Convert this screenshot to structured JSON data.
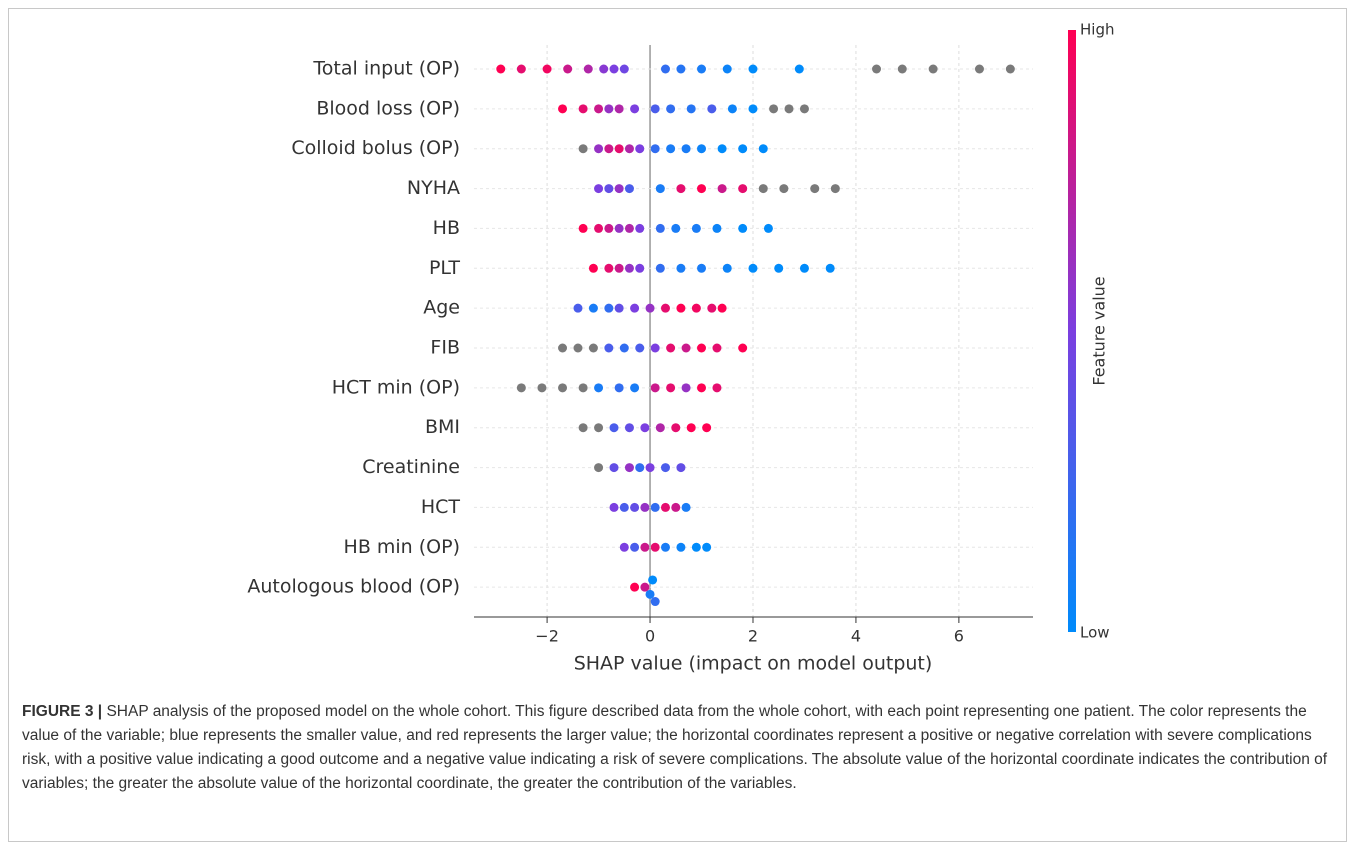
{
  "chart_data": {
    "type": "beeswarm",
    "xlabel": "SHAP value (impact on model output)",
    "xlim": [
      -3.42,
      7.44
    ],
    "xticks": [
      {
        "value": -2,
        "label": "−2"
      },
      0,
      2,
      4,
      6
    ],
    "grid": true,
    "colorbar": {
      "label": "Feature value",
      "high_label": "High",
      "low_label": "Low",
      "low_color": "#008bfb",
      "high_color": "#ff0052",
      "missing_color": "#7a7a7a"
    },
    "features": [
      {
        "name": "Total input (OP)",
        "shap": [
          -2.9,
          -2.5,
          -2.0,
          -1.6,
          -1.2,
          -0.9,
          -0.7,
          -0.5,
          0.3,
          0.6,
          1.0,
          1.5,
          2.0,
          2.9,
          4.4,
          4.9,
          5.5,
          6.4,
          7.0
        ],
        "feature_value": [
          1,
          0.9,
          0.95,
          0.8,
          0.7,
          0.55,
          0.5,
          0.45,
          0.2,
          0.15,
          0.1,
          0.05,
          0,
          0,
          null,
          null,
          null,
          null,
          null
        ]
      },
      {
        "name": "Blood loss (OP)",
        "shap": [
          -1.7,
          -1.3,
          -1.0,
          -0.8,
          -0.6,
          -0.3,
          0.1,
          0.4,
          0.8,
          1.2,
          1.6,
          2.0,
          2.4,
          2.7,
          3.0
        ],
        "feature_value": [
          1,
          0.9,
          0.8,
          0.6,
          0.7,
          0.5,
          0.3,
          0.2,
          0.15,
          0.3,
          0.05,
          0,
          null,
          null,
          null
        ]
      },
      {
        "name": "Colloid bolus (OP)",
        "shap": [
          -1.3,
          -1.0,
          -0.8,
          -0.6,
          -0.4,
          -0.2,
          0.1,
          0.4,
          0.7,
          1.0,
          1.4,
          1.8,
          2.2
        ],
        "feature_value": [
          null,
          0.6,
          0.8,
          0.9,
          0.7,
          0.5,
          0.2,
          0.1,
          0.1,
          0.05,
          0,
          0,
          0
        ]
      },
      {
        "name": "NYHA",
        "shap": [
          -1.0,
          -0.8,
          -0.6,
          -0.4,
          0.2,
          0.6,
          1.0,
          1.4,
          1.8,
          2.2,
          2.6,
          3.2,
          3.6
        ],
        "feature_value": [
          0.5,
          0.4,
          0.6,
          0.3,
          0.1,
          0.9,
          1,
          0.8,
          0.9,
          null,
          null,
          null,
          null
        ]
      },
      {
        "name": "HB",
        "shap": [
          -1.3,
          -1.0,
          -0.8,
          -0.6,
          -0.4,
          -0.2,
          0.2,
          0.5,
          0.9,
          1.3,
          1.8,
          2.3
        ],
        "feature_value": [
          1,
          0.9,
          0.8,
          0.6,
          0.7,
          0.5,
          0.2,
          0.1,
          0.1,
          0.05,
          0,
          0
        ]
      },
      {
        "name": "PLT",
        "shap": [
          -1.1,
          -0.8,
          -0.6,
          -0.4,
          -0.2,
          0.2,
          0.6,
          1.0,
          1.5,
          2.0,
          2.5,
          3.0,
          3.5
        ],
        "feature_value": [
          1,
          0.9,
          0.8,
          0.6,
          0.5,
          0.2,
          0.1,
          0.1,
          0.05,
          0,
          0,
          0,
          0
        ]
      },
      {
        "name": "Age",
        "shap": [
          -1.4,
          -1.1,
          -0.8,
          -0.6,
          -0.3,
          0,
          0.3,
          0.6,
          0.9,
          1.2,
          1.4
        ],
        "feature_value": [
          0.3,
          0.1,
          0.2,
          0.4,
          0.5,
          0.6,
          0.9,
          1,
          0.95,
          0.9,
          1
        ]
      },
      {
        "name": "FIB",
        "shap": [
          -1.7,
          -1.4,
          -1.1,
          -0.8,
          -0.5,
          -0.2,
          0.1,
          0.4,
          0.7,
          1.0,
          1.3,
          1.8
        ],
        "feature_value": [
          null,
          null,
          null,
          0.3,
          0.2,
          0.3,
          0.5,
          0.9,
          0.8,
          1,
          0.9,
          1
        ]
      },
      {
        "name": "HCT min (OP)",
        "shap": [
          -2.5,
          -2.1,
          -1.7,
          -1.3,
          -1.0,
          -0.6,
          -0.3,
          0.1,
          0.4,
          0.7,
          1.0,
          1.3
        ],
        "feature_value": [
          null,
          null,
          null,
          null,
          0.1,
          0.2,
          0.1,
          0.8,
          0.9,
          0.6,
          1,
          0.9
        ]
      },
      {
        "name": "BMI",
        "shap": [
          -1.3,
          -1.0,
          -0.7,
          -0.4,
          -0.1,
          0.2,
          0.5,
          0.8,
          1.1
        ],
        "feature_value": [
          null,
          null,
          0.3,
          0.4,
          0.5,
          0.7,
          0.9,
          1,
          1
        ]
      },
      {
        "name": "Creatinine",
        "shap": [
          -1.0,
          -0.7,
          -0.4,
          -0.2,
          0,
          0.3,
          0.6
        ],
        "feature_value": [
          null,
          0.4,
          0.6,
          0.2,
          0.5,
          0.3,
          0.4
        ]
      },
      {
        "name": "HCT",
        "shap": [
          -0.7,
          -0.5,
          -0.3,
          -0.1,
          0.1,
          0.3,
          0.5,
          0.7
        ],
        "feature_value": [
          0.5,
          0.3,
          0.4,
          0.6,
          0.2,
          0.9,
          0.8,
          0.1
        ]
      },
      {
        "name": "HB min (OP)",
        "shap": [
          -0.5,
          -0.3,
          -0.1,
          0.1,
          0.3,
          0.6,
          0.9,
          1.1
        ],
        "feature_value": [
          0.5,
          0.3,
          0.8,
          0.9,
          0.1,
          0.05,
          0,
          0
        ]
      },
      {
        "name": "Autologous blood (OP)",
        "shap": [
          -0.3,
          -0.1,
          0,
          0.05,
          0.1
        ],
        "feature_value": [
          1,
          0.8,
          0.1,
          0,
          0.2
        ]
      }
    ]
  },
  "caption": {
    "label": "FIGURE 3 |",
    "text": "SHAP analysis of the proposed model on the whole cohort. This figure described data from the whole cohort, with each point representing one patient. The color represents the value of the variable; blue represents the smaller value, and red represents the larger value; the horizontal coordinates represent a positive or negative correlation with severe complications risk, with a positive value indicating a good outcome and a negative value indicating a risk of severe complications. The absolute value of the horizontal coordinate indicates the contribution of variables; the greater the absolute value of the horizontal coordinate, the greater the contribution of the variables."
  }
}
